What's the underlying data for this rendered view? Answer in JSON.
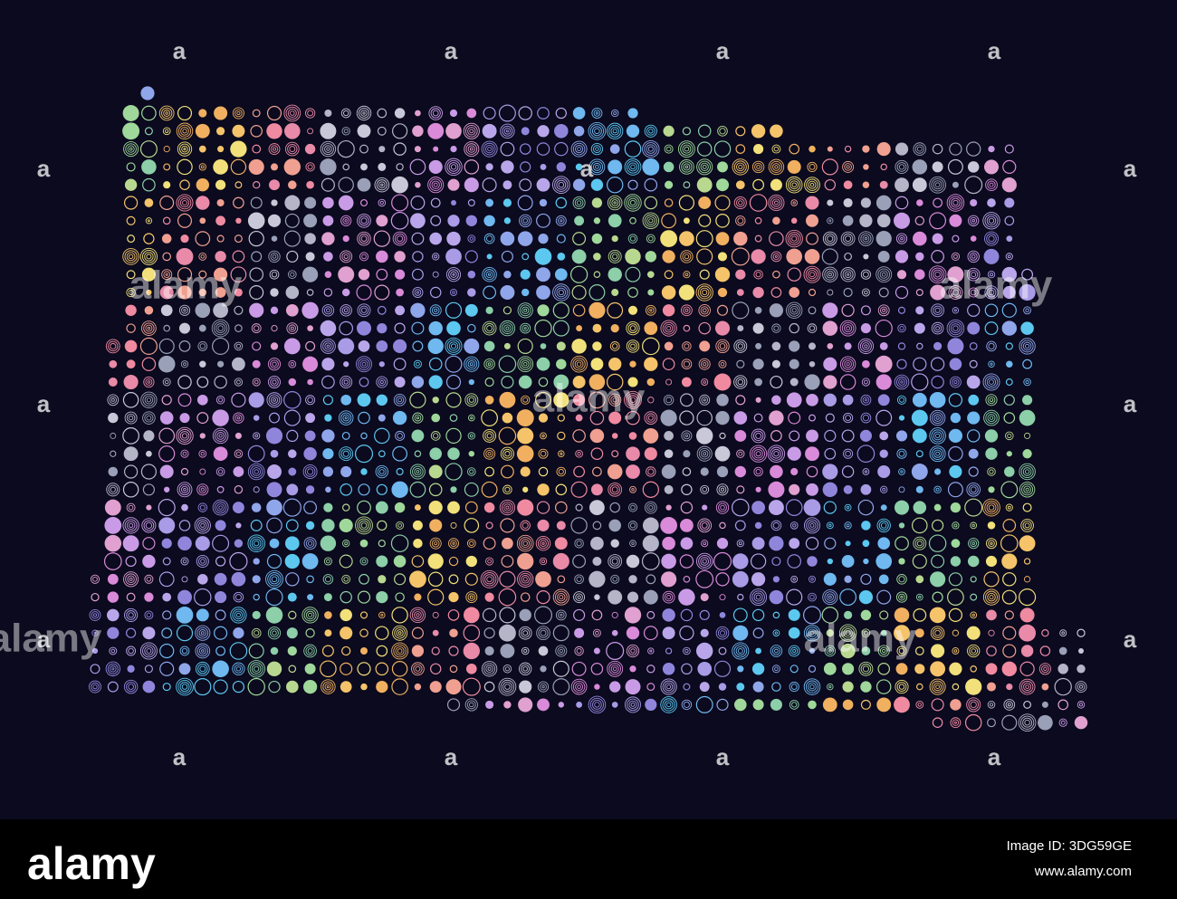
{
  "watermark": {
    "mark": "a",
    "logo": "alamy"
  },
  "footer": {
    "logo": "alamy",
    "image_id": "Image ID: 3DG59GE",
    "url": "www.alamy.com"
  }
}
